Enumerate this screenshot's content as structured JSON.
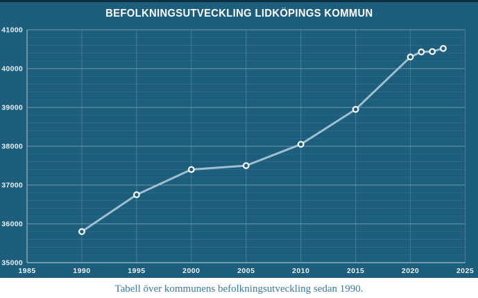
{
  "chart_data": {
    "type": "line",
    "title": "BEFOLKNINGSUTVECKLING LIDKÖPINGS KOMMUN",
    "x": [
      1990,
      1995,
      2000,
      2005,
      2010,
      2015,
      2020,
      2021,
      2022,
      2023
    ],
    "values": [
      35800,
      36750,
      37400,
      37500,
      38050,
      38950,
      40300,
      40430,
      40440,
      40520
    ],
    "xlim": [
      1985,
      2025
    ],
    "ylim": [
      35000,
      41000
    ],
    "x_ticks": [
      1985,
      1990,
      1995,
      2000,
      2005,
      2010,
      2015,
      2020,
      2025
    ],
    "y_ticks": [
      35000,
      36000,
      37000,
      38000,
      39000,
      40000,
      41000
    ],
    "y_minor_step": 200,
    "grid": true,
    "legend": "none",
    "marker": "open-circle"
  },
  "caption": "Tabell över kommunens befolkningsutveckling sedan 1990.",
  "colors": {
    "background": "#1d5e7d",
    "top_border": "#0e2d3e",
    "line": "#a9c8d8",
    "marker_stroke": "#ffffff",
    "marker_fill": "#1d5e7d",
    "grid_major": "rgba(255,255,255,0.35)",
    "grid_minor": "rgba(255,255,255,0.08)",
    "grid_vertical": "rgba(255,255,255,0.18)",
    "axis": "rgba(255,255,255,0.6)",
    "tick_label": "#e9f1f5",
    "title_text": "#ffffff",
    "caption_text": "#38799c",
    "page_background": "#ffffff"
  }
}
